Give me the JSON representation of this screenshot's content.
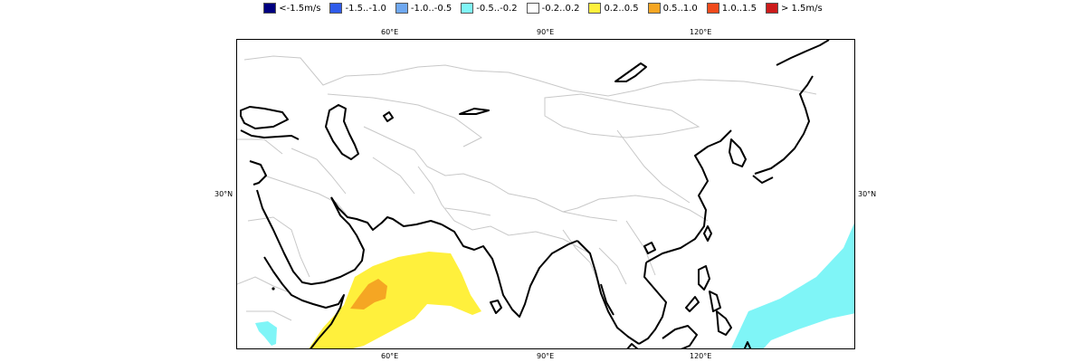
{
  "legend": {
    "items": [
      {
        "label": "<-1.5m/s",
        "color": "#000080",
        "icon": "swatch-dark-blue"
      },
      {
        "label": "-1.5..-1.0",
        "color": "#2f5bea",
        "icon": "swatch-blue"
      },
      {
        "label": "-1.0..-0.5",
        "color": "#6fa8f0",
        "icon": "swatch-light-blue"
      },
      {
        "label": "-0.5..-0.2",
        "color": "#7ff5f7",
        "icon": "swatch-cyan"
      },
      {
        "label": "-0.2..0.2",
        "color": "#ffffff",
        "icon": "swatch-white"
      },
      {
        "label": "0.2..0.5",
        "color": "#fff03c",
        "icon": "swatch-yellow"
      },
      {
        "label": "0.5..1.0",
        "color": "#f5a623",
        "icon": "swatch-orange"
      },
      {
        "label": "1.0..1.5",
        "color": "#f04a1c",
        "icon": "swatch-red-orange"
      },
      {
        "label": "> 1.5m/s",
        "color": "#cc1b1b",
        "icon": "swatch-red"
      }
    ]
  },
  "map": {
    "x_ticks_top": [
      "60°E",
      "90°E",
      "120°E"
    ],
    "x_ticks_bottom": [
      "60°E",
      "90°E",
      "120°E"
    ],
    "y_tick_left": "30°N",
    "y_tick_right": "30°N",
    "colors": {
      "coast": "#000000",
      "border": "#c8c8c8",
      "positive_anomaly": "#fff03c",
      "strong_positive_anomaly": "#f5a623",
      "negative_anomaly": "#7ff5f7"
    }
  }
}
